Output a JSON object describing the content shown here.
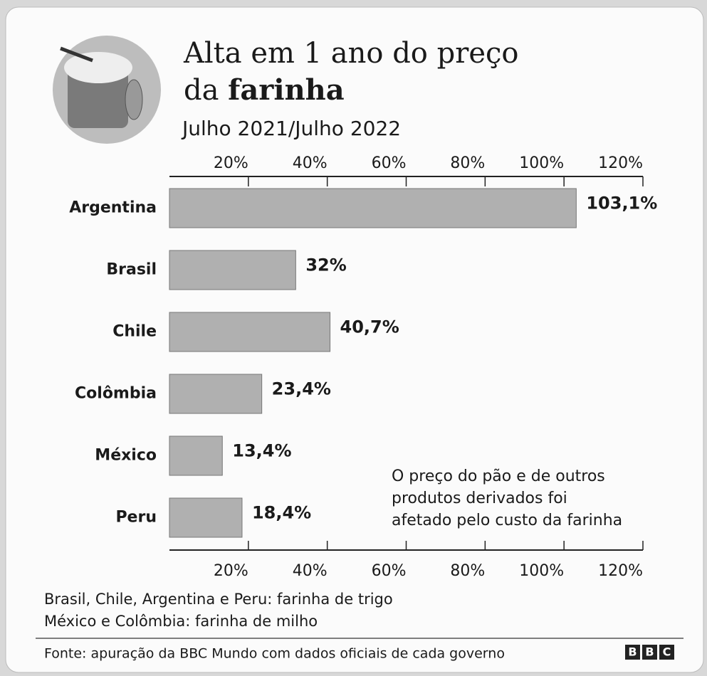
{
  "chart_data": {
    "type": "barh",
    "title": [
      "Alta em 1 ano do preço",
      "da",
      "farinha"
    ],
    "subtitle": "Julho 2021/Julho 2022",
    "categories": [
      "Argentina",
      "Brasil",
      "Chile",
      "Colômbia",
      "México",
      "Peru"
    ],
    "values": [
      103.1,
      32,
      40.7,
      23.4,
      13.4,
      18.4
    ],
    "value_labels": [
      "103,1%",
      "32%",
      "40,7%",
      "23,4%",
      "13,4%",
      "18,4%"
    ],
    "color": "#b0b0b0",
    "xlim": [
      0,
      120
    ],
    "xticks": [
      {
        "value": 20,
        "label": "20%"
      },
      {
        "value": 40,
        "label": "40%"
      },
      {
        "value": 60,
        "label": "60%"
      },
      {
        "value": 80,
        "label": "80%"
      },
      {
        "value": 100,
        "label": "100%"
      },
      {
        "value": 120,
        "label": "120%"
      }
    ],
    "annotation": [
      "O preço do pão e de outros",
      "produtos derivados foi",
      "afetado pelo custo da farinha"
    ],
    "notes": [
      "Brasil, Chile, Argentina e Peru: farinha de trigo",
      "México e Colômbia: farinha de milho"
    ],
    "source": "Fonte: apuração da BBC Mundo com dados oficiais de cada governo",
    "logo": [
      "B",
      "B",
      "C"
    ]
  }
}
